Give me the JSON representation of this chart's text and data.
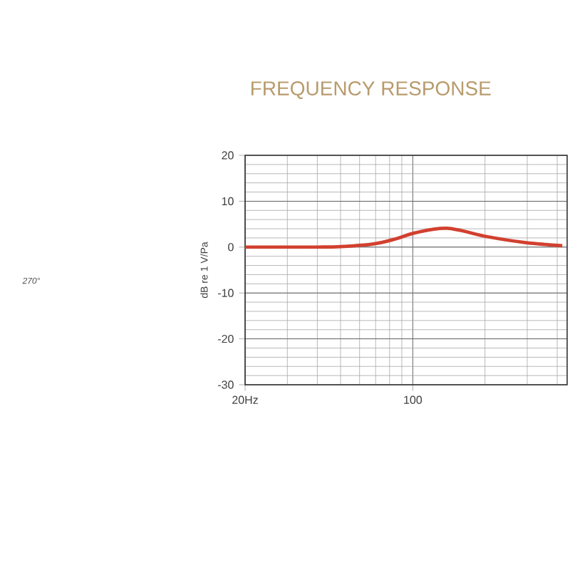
{
  "chart_data": {
    "type": "line",
    "title": "FREQUENCY RESPONSE",
    "ylabel": "dB re 1 V/Pa",
    "annotations": [
      "270°"
    ],
    "x": [
      20,
      30,
      40,
      50,
      68.6,
      85,
      102,
      139,
      203,
      293,
      420
    ],
    "series": [
      {
        "color": "#d2402f",
        "values": [
          0,
          0,
          0,
          0.1,
          0.7,
          1.8,
          3.1,
          4.1,
          2.3,
          1.0,
          0.3
        ]
      }
    ],
    "log": "x",
    "xlim": [
      20,
      440
    ],
    "xticks": [
      {
        "value": 20,
        "label": "20Hz"
      },
      {
        "value": 30,
        "label": null
      },
      {
        "value": 40,
        "label": null
      },
      {
        "value": 50,
        "label": null
      },
      {
        "value": 60,
        "label": null
      },
      {
        "value": 70,
        "label": null
      },
      {
        "value": 80,
        "label": null
      },
      {
        "value": 90,
        "label": null
      },
      100,
      {
        "value": 200,
        "label": null
      },
      {
        "value": 300,
        "label": null
      },
      {
        "value": 400,
        "label": null
      }
    ],
    "ylim": [
      -30,
      20
    ],
    "yticks": [
      -30,
      -20,
      -10,
      0,
      10,
      20
    ],
    "grid": true,
    "marker": "none",
    "line_style": "solid"
  }
}
